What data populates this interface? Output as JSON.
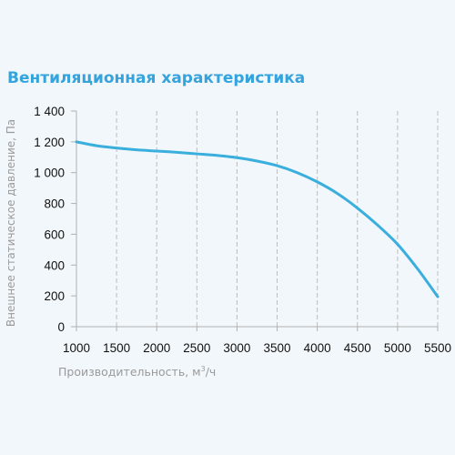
{
  "chart_data": {
    "type": "line",
    "title": "Вентиляционная характеристика",
    "xlabel": "Производительность, м",
    "xlabel_sup": "3",
    "xlabel_tail": "/ч",
    "ylabel": "Внешнее статическое давление, Па",
    "xlim": [
      1000,
      5500
    ],
    "ylim": [
      0,
      1400
    ],
    "x_ticks": [
      1000,
      1500,
      2000,
      2500,
      3000,
      3500,
      4000,
      4500,
      5000,
      5500
    ],
    "x_tick_labels": [
      "1000",
      "1500",
      "2000",
      "2500",
      "3000",
      "3500",
      "4000",
      "4500",
      "5000",
      "5500"
    ],
    "y_ticks": [
      0,
      200,
      400,
      600,
      800,
      1000,
      1200,
      1400
    ],
    "y_tick_labels": [
      "0",
      "200",
      "400",
      "600",
      "800",
      "1 000",
      "1 200",
      "1 400"
    ],
    "grid": "vertical-dashed",
    "series": [
      {
        "color": "#3aaedc",
        "x": [
          1000,
          1250,
          1500,
          1750,
          2000,
          2250,
          2500,
          2750,
          3000,
          3250,
          3500,
          3750,
          4000,
          4250,
          4500,
          4750,
          5000,
          5250,
          5500
        ],
        "y": [
          1200,
          1175,
          1160,
          1148,
          1140,
          1132,
          1122,
          1112,
          1097,
          1075,
          1045,
          1000,
          940,
          865,
          770,
          660,
          535,
          375,
          195
        ]
      }
    ]
  },
  "colors": {
    "title": "#35a3dc",
    "line": "#3aaedc",
    "axis": "#b0b0b0",
    "grid": "#bdbdbd",
    "axis_label": "#9a9a9a"
  }
}
